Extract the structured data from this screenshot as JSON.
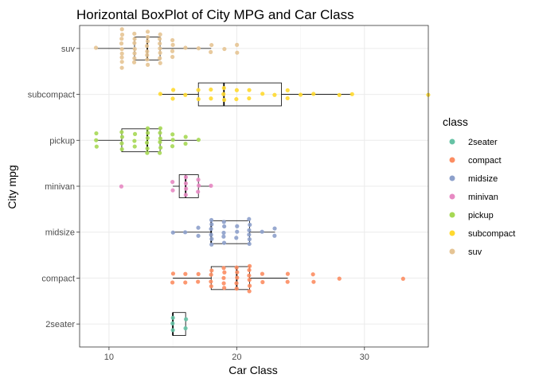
{
  "chart_data": {
    "type": "boxplot",
    "title": "Horizontal BoxPlot of City MPG and Car Class",
    "xlabel": "Car Class",
    "ylabel": "City mpg",
    "xlim": [
      7.7,
      35.0
    ],
    "x_ticks": [
      10,
      20,
      30
    ],
    "categories": [
      "2seater",
      "compact",
      "midsize",
      "minivan",
      "pickup",
      "subcompact",
      "suv"
    ],
    "grid": true,
    "legend": {
      "title": "class",
      "position": "right"
    },
    "colors": {
      "2seater": "#66c2a5",
      "compact": "#fc8d62",
      "midsize": "#8da0cb",
      "minivan": "#e78ac3",
      "pickup": "#a6d854",
      "subcompact": "#ffd92f",
      "suv": "#e5c494"
    },
    "boxes": [
      {
        "category": "2seater",
        "min": 15,
        "q1": 15,
        "median": 15,
        "q3": 16,
        "max": 16
      },
      {
        "category": "compact",
        "min": 15,
        "q1": 18,
        "median": 20,
        "q3": 21,
        "max": 24
      },
      {
        "category": "midsize",
        "min": 15,
        "q1": 18,
        "median": 18,
        "q3": 21,
        "max": 23
      },
      {
        "category": "minivan",
        "min": 15,
        "q1": 15.5,
        "median": 16,
        "q3": 17,
        "max": 18
      },
      {
        "category": "pickup",
        "min": 9,
        "q1": 11,
        "median": 13,
        "q3": 14,
        "max": 17
      },
      {
        "category": "subcompact",
        "min": 14,
        "q1": 17,
        "median": 19,
        "q3": 23.5,
        "max": 29
      },
      {
        "category": "suv",
        "min": 9,
        "q1": 12,
        "median": 13,
        "q3": 14,
        "max": 18
      }
    ],
    "points": [
      {
        "category": "2seater",
        "values": [
          15,
          15,
          15,
          16,
          16
        ]
      },
      {
        "category": "compact",
        "values": [
          15,
          15,
          16,
          16,
          17,
          17,
          18,
          18,
          18,
          18,
          19,
          19,
          19,
          19,
          19,
          20,
          20,
          20,
          20,
          20,
          21,
          21,
          21,
          21,
          21,
          21,
          22,
          22,
          24,
          24,
          26,
          26,
          28,
          33
        ]
      },
      {
        "category": "midsize",
        "values": [
          15,
          16,
          17,
          17,
          18,
          18,
          18,
          18,
          18,
          18,
          19,
          19,
          19,
          19,
          19,
          20,
          20,
          20,
          21,
          21,
          21,
          21,
          21,
          21,
          22,
          23,
          23
        ]
      },
      {
        "category": "minivan",
        "values": [
          11,
          15,
          15,
          16,
          16,
          16,
          16,
          17,
          17,
          17,
          18
        ]
      },
      {
        "category": "pickup",
        "values": [
          9,
          9,
          9,
          11,
          11,
          11,
          11,
          12,
          12,
          12,
          13,
          13,
          13,
          13,
          13,
          13,
          14,
          14,
          14,
          14,
          14,
          14,
          15,
          15,
          15,
          16,
          16,
          17
        ]
      },
      {
        "category": "subcompact",
        "values": [
          14,
          15,
          15,
          16,
          17,
          17,
          18,
          18,
          19,
          19,
          19,
          20,
          20,
          21,
          21,
          22,
          23,
          24,
          24,
          25,
          26,
          28,
          29,
          35
        ]
      },
      {
        "category": "suv",
        "values": [
          9,
          11,
          11,
          11,
          11,
          11,
          11,
          11,
          11,
          11,
          12,
          12,
          12,
          12,
          12,
          12,
          12,
          13,
          13,
          13,
          13,
          13,
          13,
          13,
          13,
          14,
          14,
          14,
          14,
          14,
          14,
          14,
          15,
          15,
          15,
          15,
          16,
          17,
          18,
          18,
          19,
          20,
          20
        ]
      }
    ]
  }
}
